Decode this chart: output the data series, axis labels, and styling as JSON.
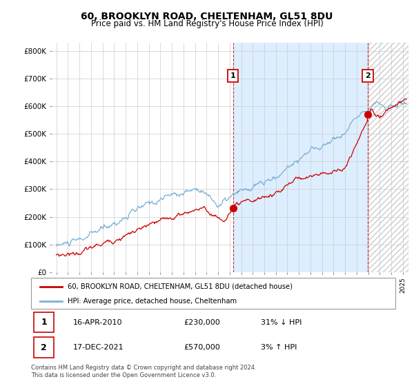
{
  "title": "60, BROOKLYN ROAD, CHELTENHAM, GL51 8DU",
  "subtitle": "Price paid vs. HM Land Registry's House Price Index (HPI)",
  "ylabel_ticks": [
    "£0",
    "£100K",
    "£200K",
    "£300K",
    "£400K",
    "£500K",
    "£600K",
    "£700K",
    "£800K"
  ],
  "ytick_values": [
    0,
    100000,
    200000,
    300000,
    400000,
    500000,
    600000,
    700000,
    800000
  ],
  "ylim": [
    0,
    830000
  ],
  "xlim_start": 1994.6,
  "xlim_end": 2025.5,
  "transaction1": {
    "date_num": 2010.29,
    "price": 230000,
    "label": "1",
    "date_str": "16-APR-2010"
  },
  "transaction2": {
    "date_num": 2021.96,
    "price": 570000,
    "label": "2",
    "date_str": "17-DEC-2021"
  },
  "red_line_color": "#cc0000",
  "blue_line_color": "#7ab0d4",
  "shade_color": "#ddeeff",
  "legend_label_red": "60, BROOKLYN ROAD, CHELTENHAM, GL51 8DU (detached house)",
  "legend_label_blue": "HPI: Average price, detached house, Cheltenham",
  "footer_text": "Contains HM Land Registry data © Crown copyright and database right 2024.\nThis data is licensed under the Open Government Licence v3.0.",
  "table_rows": [
    {
      "num": "1",
      "date": "16-APR-2010",
      "price": "£230,000",
      "pct": "31% ↓ HPI"
    },
    {
      "num": "2",
      "date": "17-DEC-2021",
      "price": "£570,000",
      "pct": "3% ↑ HPI"
    }
  ],
  "background_color": "#ffffff",
  "grid_color": "#cccccc"
}
